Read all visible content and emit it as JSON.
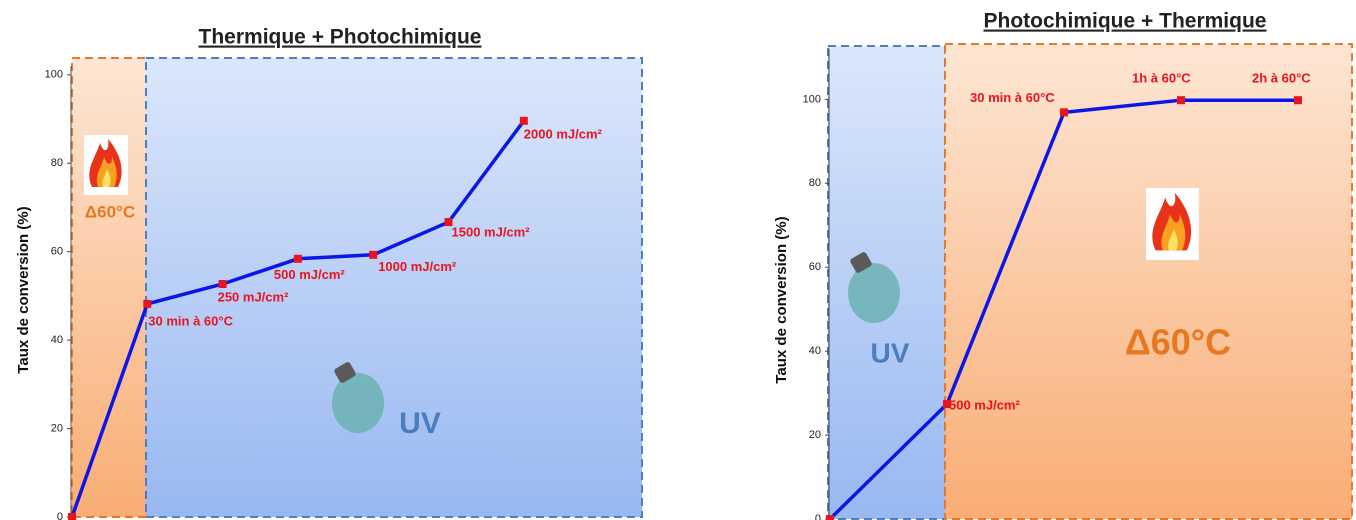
{
  "chart_data": [
    {
      "type": "line",
      "title": "Thermique + Photochimique",
      "y_label": "Taux de conversion (%)",
      "categories": [
        null,
        "30 min à 60°C",
        "250 mJ/cm²",
        "500 mJ/cm²",
        "1000 mJ/cm²",
        "1500 mJ/cm²",
        "2000 mJ/cm²"
      ],
      "series": [
        {
          "color": "#0b16e8",
          "marker_color": "#e8141e",
          "values": [
            0,
            48.2,
            52.7,
            58.4,
            59.3,
            66.7,
            89.6
          ]
        }
      ],
      "ylim": [
        0,
        102
      ],
      "yticks": [
        0,
        20,
        40,
        60,
        80,
        100
      ],
      "regions": [
        {
          "label": "Δ60°C",
          "color": "#f7a66a"
        },
        {
          "label": "UV",
          "color": "#9dbcf3"
        }
      ]
    },
    {
      "type": "line",
      "title": "Photochimique + Thermique",
      "y_label": "Taux de conversion (%)",
      "categories": [
        null,
        "500 mJ/cm²",
        "30 min à 60°C",
        "1h à 60°C",
        "2h à 60°C"
      ],
      "series": [
        {
          "color": "#0b16e8",
          "marker_color": "#e8141e",
          "values": [
            0,
            27.4,
            96.9,
            99.8,
            99.8
          ]
        }
      ],
      "ylim": [
        0,
        112
      ],
      "yticks": [
        0,
        20,
        40,
        60,
        80,
        100
      ],
      "regions": [
        {
          "label": "UV",
          "color": "#9dbcf3"
        },
        {
          "label": "Δ60°C",
          "color": "#f7a66a"
        }
      ]
    }
  ]
}
